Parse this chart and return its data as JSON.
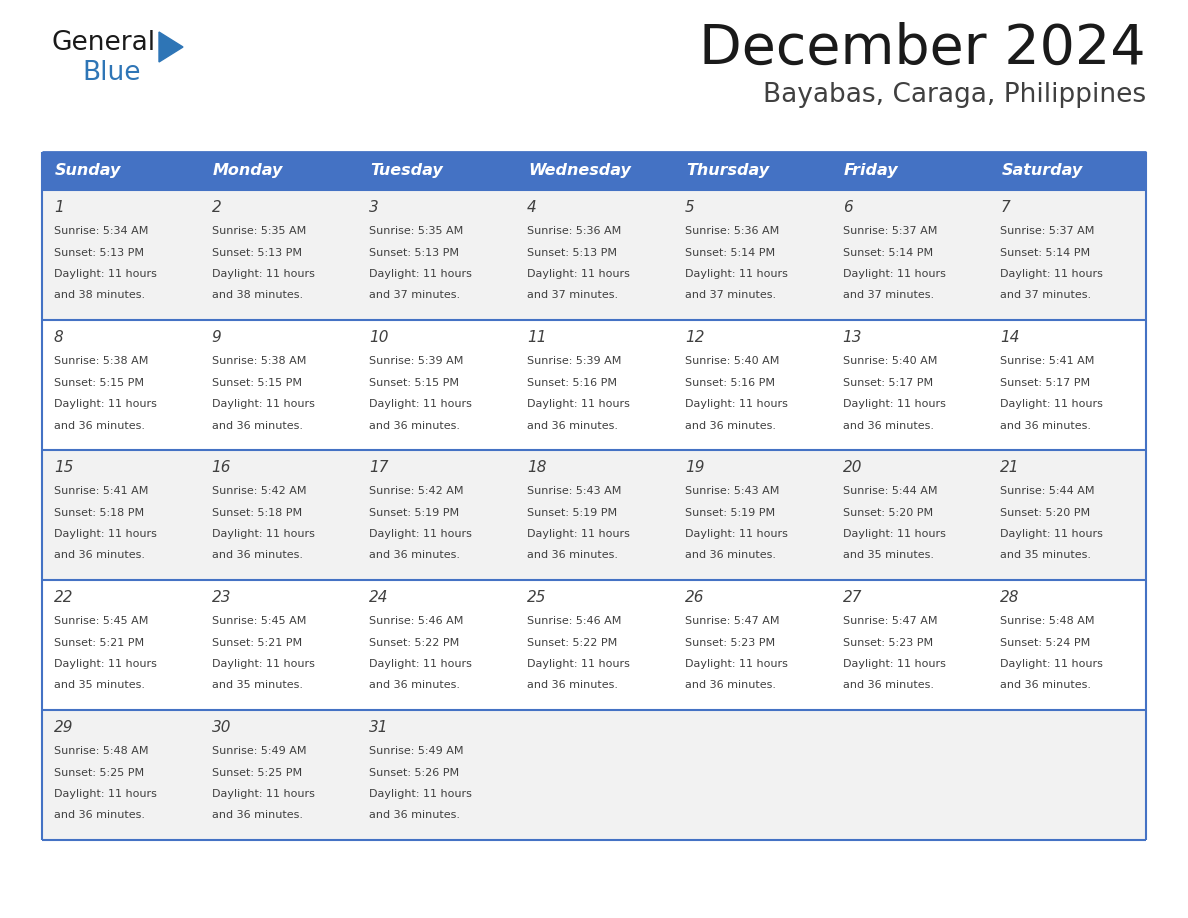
{
  "title": "December 2024",
  "subtitle": "Bayabas, Caraga, Philippines",
  "header_color": "#4472C4",
  "header_text_color": "#FFFFFF",
  "border_color": "#4472C4",
  "text_color": "#404040",
  "days_of_week": [
    "Sunday",
    "Monday",
    "Tuesday",
    "Wednesday",
    "Thursday",
    "Friday",
    "Saturday"
  ],
  "calendar_data": [
    [
      {
        "day": 1,
        "sunrise": "5:34 AM",
        "sunset": "5:13 PM",
        "daylight_minutes": "38"
      },
      {
        "day": 2,
        "sunrise": "5:35 AM",
        "sunset": "5:13 PM",
        "daylight_minutes": "38"
      },
      {
        "day": 3,
        "sunrise": "5:35 AM",
        "sunset": "5:13 PM",
        "daylight_minutes": "37"
      },
      {
        "day": 4,
        "sunrise": "5:36 AM",
        "sunset": "5:13 PM",
        "daylight_minutes": "37"
      },
      {
        "day": 5,
        "sunrise": "5:36 AM",
        "sunset": "5:14 PM",
        "daylight_minutes": "37"
      },
      {
        "day": 6,
        "sunrise": "5:37 AM",
        "sunset": "5:14 PM",
        "daylight_minutes": "37"
      },
      {
        "day": 7,
        "sunrise": "5:37 AM",
        "sunset": "5:14 PM",
        "daylight_minutes": "37"
      }
    ],
    [
      {
        "day": 8,
        "sunrise": "5:38 AM",
        "sunset": "5:15 PM",
        "daylight_minutes": "36"
      },
      {
        "day": 9,
        "sunrise": "5:38 AM",
        "sunset": "5:15 PM",
        "daylight_minutes": "36"
      },
      {
        "day": 10,
        "sunrise": "5:39 AM",
        "sunset": "5:15 PM",
        "daylight_minutes": "36"
      },
      {
        "day": 11,
        "sunrise": "5:39 AM",
        "sunset": "5:16 PM",
        "daylight_minutes": "36"
      },
      {
        "day": 12,
        "sunrise": "5:40 AM",
        "sunset": "5:16 PM",
        "daylight_minutes": "36"
      },
      {
        "day": 13,
        "sunrise": "5:40 AM",
        "sunset": "5:17 PM",
        "daylight_minutes": "36"
      },
      {
        "day": 14,
        "sunrise": "5:41 AM",
        "sunset": "5:17 PM",
        "daylight_minutes": "36"
      }
    ],
    [
      {
        "day": 15,
        "sunrise": "5:41 AM",
        "sunset": "5:18 PM",
        "daylight_minutes": "36"
      },
      {
        "day": 16,
        "sunrise": "5:42 AM",
        "sunset": "5:18 PM",
        "daylight_minutes": "36"
      },
      {
        "day": 17,
        "sunrise": "5:42 AM",
        "sunset": "5:19 PM",
        "daylight_minutes": "36"
      },
      {
        "day": 18,
        "sunrise": "5:43 AM",
        "sunset": "5:19 PM",
        "daylight_minutes": "36"
      },
      {
        "day": 19,
        "sunrise": "5:43 AM",
        "sunset": "5:19 PM",
        "daylight_minutes": "36"
      },
      {
        "day": 20,
        "sunrise": "5:44 AM",
        "sunset": "5:20 PM",
        "daylight_minutes": "35"
      },
      {
        "day": 21,
        "sunrise": "5:44 AM",
        "sunset": "5:20 PM",
        "daylight_minutes": "35"
      }
    ],
    [
      {
        "day": 22,
        "sunrise": "5:45 AM",
        "sunset": "5:21 PM",
        "daylight_minutes": "35"
      },
      {
        "day": 23,
        "sunrise": "5:45 AM",
        "sunset": "5:21 PM",
        "daylight_minutes": "35"
      },
      {
        "day": 24,
        "sunrise": "5:46 AM",
        "sunset": "5:22 PM",
        "daylight_minutes": "36"
      },
      {
        "day": 25,
        "sunrise": "5:46 AM",
        "sunset": "5:22 PM",
        "daylight_minutes": "36"
      },
      {
        "day": 26,
        "sunrise": "5:47 AM",
        "sunset": "5:23 PM",
        "daylight_minutes": "36"
      },
      {
        "day": 27,
        "sunrise": "5:47 AM",
        "sunset": "5:23 PM",
        "daylight_minutes": "36"
      },
      {
        "day": 28,
        "sunrise": "5:48 AM",
        "sunset": "5:24 PM",
        "daylight_minutes": "36"
      }
    ],
    [
      {
        "day": 29,
        "sunrise": "5:48 AM",
        "sunset": "5:25 PM",
        "daylight_minutes": "36"
      },
      {
        "day": 30,
        "sunrise": "5:49 AM",
        "sunset": "5:25 PM",
        "daylight_minutes": "36"
      },
      {
        "day": 31,
        "sunrise": "5:49 AM",
        "sunset": "5:26 PM",
        "daylight_minutes": "36"
      },
      null,
      null,
      null,
      null
    ]
  ]
}
